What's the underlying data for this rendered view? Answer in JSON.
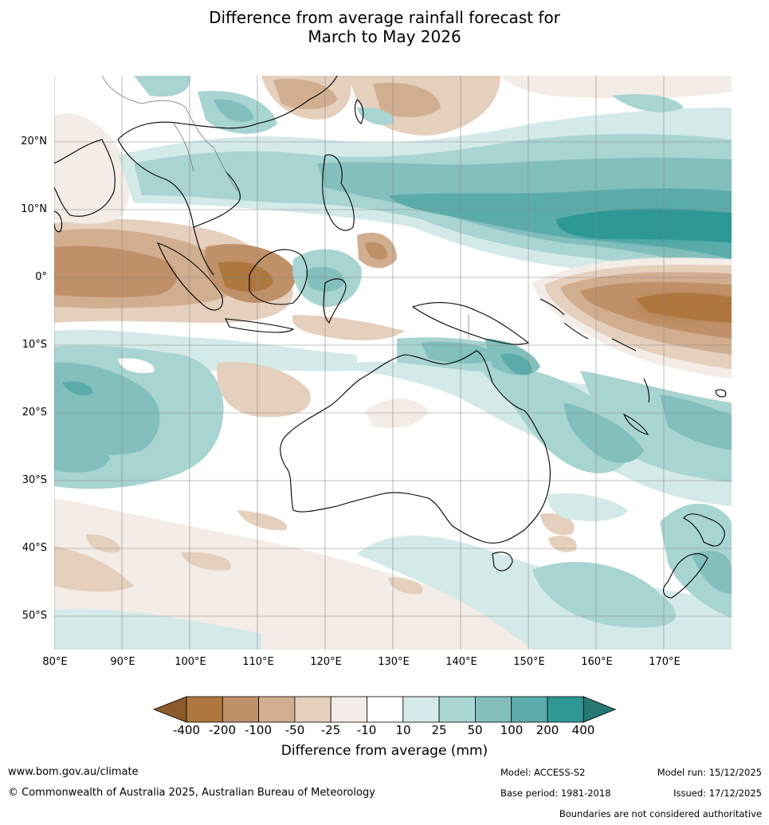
{
  "title_line1": "Difference from average rainfall forecast for",
  "title_line2": "March to May 2026",
  "lat_labels": [
    "20°N",
    "10°N",
    "0°",
    "10°S",
    "20°S",
    "30°S",
    "40°S",
    "50°S"
  ],
  "lon_labels": [
    "80°E",
    "90°E",
    "100°E",
    "110°E",
    "120°E",
    "130°E",
    "140°E",
    "150°E",
    "160°E",
    "170°E"
  ],
  "legend": {
    "title": "Difference from average (mm)",
    "ticks": [
      "-400",
      "-200",
      "-100",
      "-50",
      "-25",
      "-10",
      "10",
      "25",
      "50",
      "100",
      "200",
      "400"
    ],
    "colors": [
      "#8c5a2b",
      "#ae773e",
      "#c09069",
      "#d2ae90",
      "#e5cfbd",
      "#f4ece6",
      "#ffffff",
      "#d4eae8",
      "#a8d4d2",
      "#82bfbd",
      "#5aacaa",
      "#2e9895",
      "#257874"
    ]
  },
  "footer": {
    "website": "www.bom.gov.au/climate",
    "copyright": "© Commonwealth of Australia 2025, Australian Bureau of Meteorology",
    "model": "Model: ACCESS-S2",
    "base_period": "Base period: 1981-2018",
    "model_run": "Model run: 15/12/2025",
    "issued": "Issued: 17/12/2025",
    "disclaimer": "Boundaries are not considered authoritative"
  }
}
